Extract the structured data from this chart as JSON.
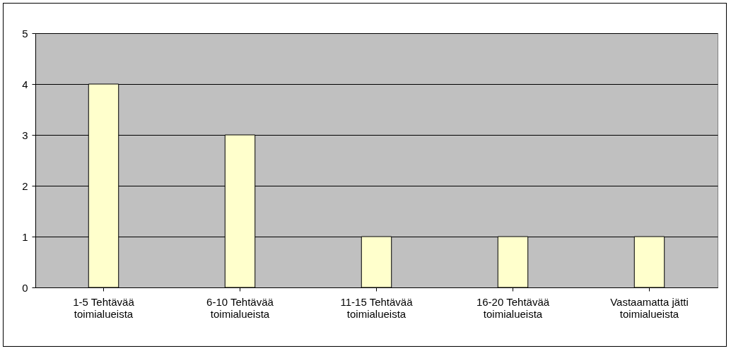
{
  "chart_data": {
    "type": "bar",
    "categories": [
      "1-5 Tehtävää toimialueista",
      "6-10 Tehtävää toimialueista",
      "11-15 Tehtävää toimialueista",
      "16-20 Tehtävää toimialueista",
      "Vastaamatta jätti toimialueista"
    ],
    "values": [
      4,
      3,
      1,
      1,
      1
    ],
    "color": "#ffffcc",
    "ylim": [
      0,
      5
    ],
    "yticks": [
      0,
      1,
      2,
      3,
      4,
      5
    ],
    "grid": "y"
  }
}
